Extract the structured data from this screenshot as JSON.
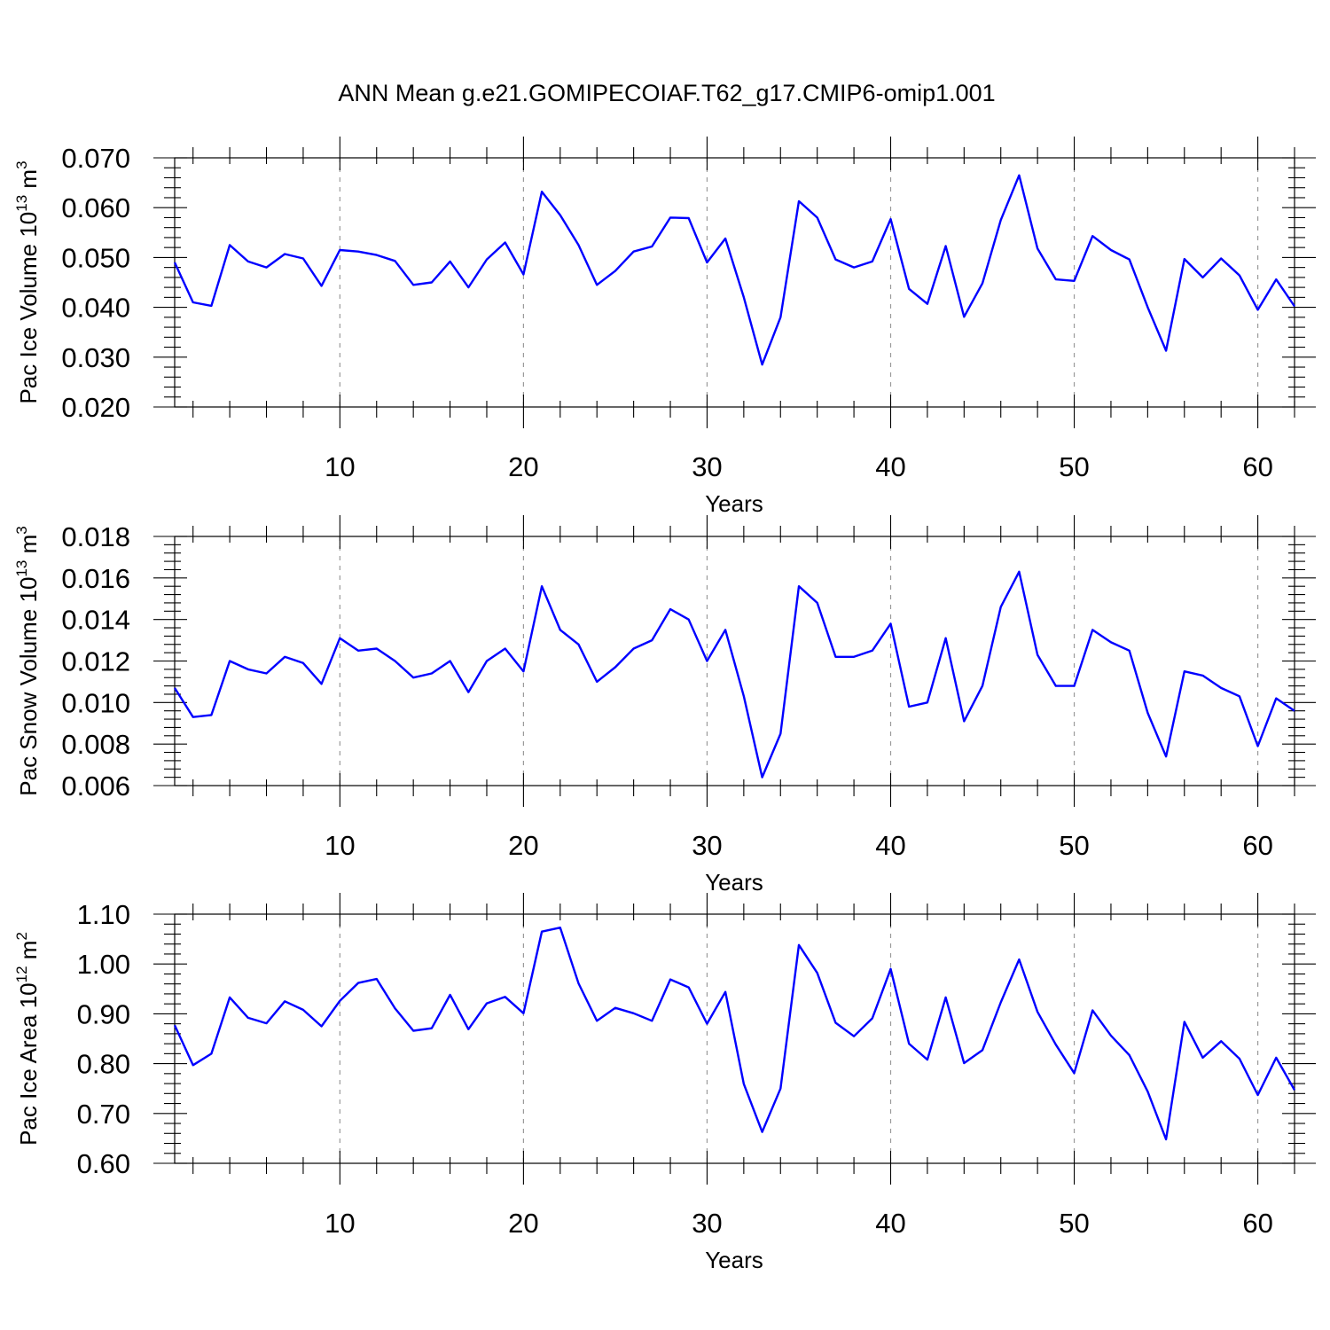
{
  "title": "ANN Mean g.e21.GOMIPECOIAF.T62_g17.CMIP6-omip1.001",
  "colors": {
    "series": "#0000ff",
    "grid": "#9a9a9a",
    "frame": "#000000"
  },
  "chart_data": [
    {
      "type": "line",
      "grid": "vertical dashed",
      "xlabel": "Years",
      "ylabel": {
        "text": "Pac Ice Volume 10",
        "sup1": "13",
        "mid": " m",
        "sup2": "3"
      },
      "xlim": [
        1,
        62
      ],
      "ylim": [
        0.02,
        0.07
      ],
      "xticks": [
        10,
        20,
        30,
        40,
        50,
        60
      ],
      "yticks": [
        0.02,
        0.03,
        0.04,
        0.05,
        0.06,
        0.07
      ],
      "ytick_labels": [
        "0.020",
        "0.030",
        "0.040",
        "0.050",
        "0.060",
        "0.070"
      ],
      "x": [
        1,
        2,
        3,
        4,
        5,
        6,
        7,
        8,
        9,
        10,
        11,
        12,
        13,
        14,
        15,
        16,
        17,
        18,
        19,
        20,
        21,
        22,
        23,
        24,
        25,
        26,
        27,
        28,
        29,
        30,
        31,
        32,
        33,
        34,
        35,
        36,
        37,
        38,
        39,
        40,
        41,
        42,
        43,
        44,
        45,
        46,
        47,
        48,
        49,
        50,
        51,
        52,
        53,
        54,
        55,
        56,
        57,
        58,
        59,
        60,
        61,
        62
      ],
      "series": [
        {
          "values": [
            0.049,
            0.041,
            0.0403,
            0.0525,
            0.0492,
            0.048,
            0.0507,
            0.0498,
            0.0443,
            0.0515,
            0.0512,
            0.0505,
            0.0493,
            0.0445,
            0.045,
            0.0492,
            0.044,
            0.0496,
            0.053,
            0.0466,
            0.0632,
            0.0585,
            0.0525,
            0.0445,
            0.0473,
            0.0512,
            0.0522,
            0.058,
            0.0579,
            0.049,
            0.0538,
            0.042,
            0.0285,
            0.038,
            0.0613,
            0.058,
            0.0496,
            0.048,
            0.0492,
            0.0577,
            0.0437,
            0.0407,
            0.0523,
            0.0381,
            0.0448,
            0.0575,
            0.0665,
            0.0518,
            0.0456,
            0.0453,
            0.0543,
            0.0515,
            0.0496,
            0.04,
            0.0313,
            0.0497,
            0.046,
            0.0498,
            0.0464,
            0.0395,
            0.0456,
            0.0402
          ]
        }
      ]
    },
    {
      "type": "line",
      "grid": "vertical dashed",
      "xlabel": "Years",
      "ylabel": {
        "text": "Pac Snow Volume 10",
        "sup1": "13",
        "mid": " m",
        "sup2": "3"
      },
      "xlim": [
        1,
        62
      ],
      "ylim": [
        0.006,
        0.018
      ],
      "xticks": [
        10,
        20,
        30,
        40,
        50,
        60
      ],
      "yticks": [
        0.006,
        0.008,
        0.01,
        0.012,
        0.014,
        0.016,
        0.018
      ],
      "ytick_labels": [
        "0.006",
        "0.008",
        "0.010",
        "0.012",
        "0.014",
        "0.016",
        "0.018"
      ],
      "x": [
        1,
        2,
        3,
        4,
        5,
        6,
        7,
        8,
        9,
        10,
        11,
        12,
        13,
        14,
        15,
        16,
        17,
        18,
        19,
        20,
        21,
        22,
        23,
        24,
        25,
        26,
        27,
        28,
        29,
        30,
        31,
        32,
        33,
        34,
        35,
        36,
        37,
        38,
        39,
        40,
        41,
        42,
        43,
        44,
        45,
        46,
        47,
        48,
        49,
        50,
        51,
        52,
        53,
        54,
        55,
        56,
        57,
        58,
        59,
        60,
        61,
        62
      ],
      "series": [
        {
          "values": [
            0.0107,
            0.0093,
            0.0094,
            0.012,
            0.0116,
            0.0114,
            0.0122,
            0.0119,
            0.0109,
            0.0131,
            0.0125,
            0.0126,
            0.012,
            0.0112,
            0.0114,
            0.012,
            0.0105,
            0.012,
            0.0126,
            0.0115,
            0.0156,
            0.0135,
            0.0128,
            0.011,
            0.0117,
            0.0126,
            0.013,
            0.0145,
            0.014,
            0.012,
            0.0135,
            0.0103,
            0.0064,
            0.0085,
            0.0156,
            0.0148,
            0.0122,
            0.0122,
            0.0125,
            0.0138,
            0.0098,
            0.01,
            0.0131,
            0.0091,
            0.0108,
            0.0146,
            0.0163,
            0.0123,
            0.0108,
            0.0108,
            0.0135,
            0.0129,
            0.0125,
            0.0095,
            0.0074,
            0.0115,
            0.0113,
            0.0107,
            0.0103,
            0.0079,
            0.0102,
            0.0096
          ]
        }
      ]
    },
    {
      "type": "line",
      "grid": "vertical dashed",
      "xlabel": "Years",
      "ylabel": {
        "text": "Pac Ice Area 10",
        "sup1": "12",
        "mid": " m",
        "sup2": "2"
      },
      "xlim": [
        1,
        62
      ],
      "ylim": [
        0.6,
        1.1
      ],
      "xticks": [
        10,
        20,
        30,
        40,
        50,
        60
      ],
      "yticks": [
        0.6,
        0.7,
        0.8,
        0.9,
        1.0,
        1.1
      ],
      "ytick_labels": [
        "0.60",
        "0.70",
        "0.80",
        "0.90",
        "1.00",
        "1.10"
      ],
      "x": [
        1,
        2,
        3,
        4,
        5,
        6,
        7,
        8,
        9,
        10,
        11,
        12,
        13,
        14,
        15,
        16,
        17,
        18,
        19,
        20,
        21,
        22,
        23,
        24,
        25,
        26,
        27,
        28,
        29,
        30,
        31,
        32,
        33,
        34,
        35,
        36,
        37,
        38,
        39,
        40,
        41,
        42,
        43,
        44,
        45,
        46,
        47,
        48,
        49,
        50,
        51,
        52,
        53,
        54,
        55,
        56,
        57,
        58,
        59,
        60,
        61,
        62
      ],
      "series": [
        {
          "values": [
            0.877,
            0.797,
            0.82,
            0.933,
            0.892,
            0.881,
            0.925,
            0.908,
            0.875,
            0.926,
            0.962,
            0.97,
            0.911,
            0.866,
            0.871,
            0.938,
            0.869,
            0.921,
            0.934,
            0.901,
            1.065,
            1.073,
            0.961,
            0.886,
            0.912,
            0.901,
            0.886,
            0.969,
            0.953,
            0.88,
            0.944,
            0.759,
            0.663,
            0.75,
            1.038,
            0.982,
            0.882,
            0.855,
            0.891,
            0.99,
            0.84,
            0.808,
            0.933,
            0.801,
            0.827,
            0.923,
            1.009,
            0.904,
            0.838,
            0.781,
            0.907,
            0.856,
            0.817,
            0.744,
            0.648,
            0.884,
            0.812,
            0.845,
            0.81,
            0.737,
            0.812,
            0.747
          ]
        }
      ]
    }
  ]
}
